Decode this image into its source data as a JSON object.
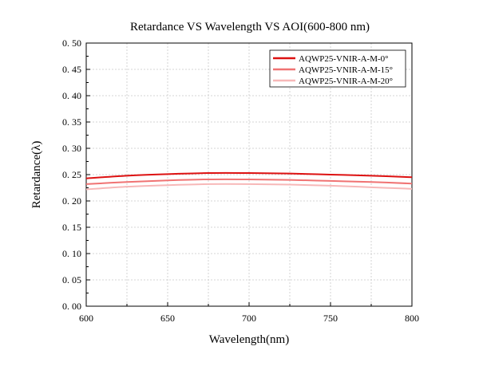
{
  "chart_data": {
    "type": "line",
    "title": "Retardance VS Wavelength VS AOI(600-800 nm)",
    "xlabel": "Wavelength(nm)",
    "ylabel": "Retardance(λ)",
    "xlim": [
      600,
      800
    ],
    "ylim": [
      0.0,
      0.5
    ],
    "xticks": [
      "600",
      "650",
      "700",
      "750",
      "800"
    ],
    "yticks": [
      "0. 00",
      "0. 05",
      "0. 10",
      "0. 15",
      "0. 20",
      "0. 25",
      "0. 30",
      "0. 35",
      "0. 40",
      "0. 45",
      "0. 50"
    ],
    "grid": true,
    "legend_position": "top-right",
    "x": [
      600,
      625,
      650,
      675,
      700,
      725,
      750,
      775,
      800
    ],
    "series": [
      {
        "name": "AQWP25-VNIR-A-M-0°",
        "color": "#dd1111",
        "values": [
          0.243,
          0.248,
          0.251,
          0.253,
          0.253,
          0.252,
          0.25,
          0.248,
          0.245
        ]
      },
      {
        "name": "AQWP25-VNIR-A-M-15°",
        "color": "#f07373",
        "values": [
          0.232,
          0.236,
          0.239,
          0.241,
          0.241,
          0.24,
          0.238,
          0.236,
          0.233
        ]
      },
      {
        "name": "AQWP25-VNIR-A-M-20°",
        "color": "#f7b8b8",
        "values": [
          0.222,
          0.227,
          0.23,
          0.232,
          0.232,
          0.231,
          0.229,
          0.226,
          0.223
        ]
      }
    ]
  }
}
